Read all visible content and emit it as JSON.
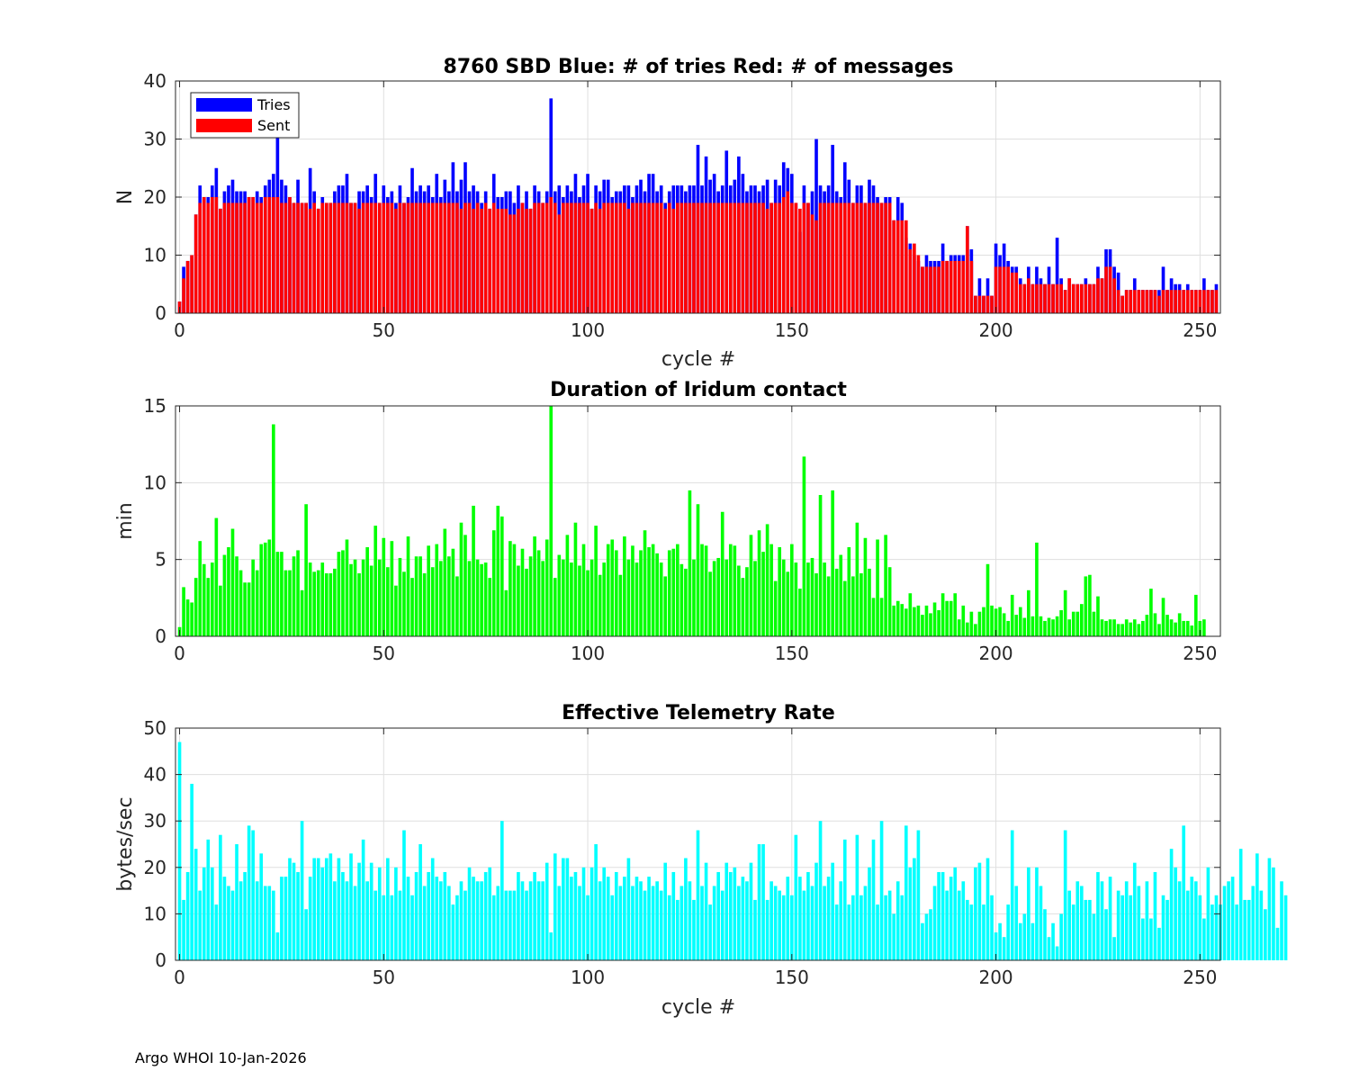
{
  "chart_data": [
    {
      "type": "bar",
      "title": "8760 SBD  Blue: # of tries   Red: # of messages",
      "xlabel": "cycle #",
      "ylabel": "N",
      "xlim": [
        -1,
        255
      ],
      "ylim": [
        0,
        40
      ],
      "xticks": [
        0,
        50,
        100,
        150,
        200,
        250
      ],
      "yticks": [
        0,
        10,
        20,
        30,
        40
      ],
      "grid": true,
      "legend": {
        "position": "top-left",
        "entries": [
          "Tries",
          "Sent"
        ]
      },
      "series": [
        {
          "name": "Tries",
          "color": "#0000ff",
          "values": [
            2,
            8,
            9,
            10,
            17,
            22,
            20,
            20,
            22,
            25,
            18,
            21,
            22,
            23,
            21,
            21,
            21,
            20,
            20,
            21,
            20,
            22,
            23,
            24,
            32,
            23,
            22,
            20,
            19,
            23,
            19,
            19,
            25,
            21,
            18,
            20,
            19,
            19,
            21,
            22,
            22,
            24,
            19,
            19,
            21,
            21,
            22,
            20,
            24,
            19,
            22,
            20,
            21,
            19,
            22,
            19,
            20,
            25,
            21,
            22,
            21,
            22,
            20,
            24,
            20,
            23,
            21,
            26,
            21,
            23,
            26,
            21,
            22,
            21,
            19,
            21,
            18,
            24,
            20,
            20,
            21,
            21,
            19,
            22,
            19,
            21,
            18,
            22,
            21,
            19,
            21,
            37,
            21,
            22,
            20,
            22,
            21,
            24,
            20,
            22,
            24,
            18,
            22,
            21,
            23,
            23,
            20,
            21,
            21,
            22,
            22,
            20,
            22,
            23,
            21,
            24,
            24,
            21,
            22,
            19,
            21,
            22,
            22,
            22,
            21,
            22,
            22,
            29,
            22,
            27,
            23,
            24,
            21,
            22,
            28,
            22,
            23,
            27,
            24,
            21,
            22,
            22,
            21,
            22,
            23,
            19,
            23,
            22,
            26,
            25,
            24,
            19,
            14,
            22,
            19,
            21,
            30,
            22,
            21,
            22,
            29,
            21,
            20,
            26,
            23,
            19,
            22,
            22,
            19,
            23,
            22,
            20,
            19,
            20,
            20,
            16,
            20,
            19,
            13,
            12,
            10,
            9,
            8,
            10,
            9,
            9,
            9,
            12,
            9,
            10,
            10,
            10,
            10,
            15,
            11,
            3,
            6,
            3,
            6,
            3,
            12,
            10,
            12,
            9,
            8,
            8,
            6,
            5,
            8,
            5,
            8,
            6,
            5,
            8,
            5,
            13,
            6,
            4,
            6,
            5,
            5,
            5,
            6,
            5,
            5,
            8,
            6,
            11,
            11,
            8,
            7,
            3,
            4,
            4,
            6,
            4,
            4,
            4,
            4,
            4,
            4,
            8,
            4,
            6,
            5,
            5,
            4,
            5,
            4,
            4,
            4,
            6,
            4,
            4,
            5
          ]
        },
        {
          "name": "Sent",
          "color": "#ff0000",
          "values": [
            2,
            6,
            9,
            10,
            17,
            19,
            20,
            19,
            20,
            20,
            18,
            19,
            19,
            19,
            19,
            19,
            19,
            20,
            20,
            19,
            19,
            20,
            20,
            20,
            20,
            19,
            19,
            20,
            19,
            19,
            19,
            19,
            18,
            19,
            18,
            19,
            19,
            19,
            19,
            19,
            19,
            19,
            19,
            19,
            18,
            19,
            19,
            19,
            19,
            19,
            19,
            19,
            19,
            18,
            19,
            19,
            19,
            19,
            19,
            19,
            19,
            19,
            19,
            19,
            19,
            19,
            19,
            19,
            19,
            18,
            19,
            19,
            18,
            19,
            18,
            19,
            18,
            19,
            18,
            18,
            18,
            17,
            17,
            18,
            19,
            18,
            18,
            19,
            19,
            19,
            19,
            20,
            19,
            17,
            19,
            19,
            19,
            19,
            19,
            19,
            19,
            18,
            19,
            18,
            19,
            19,
            19,
            19,
            19,
            19,
            18,
            19,
            19,
            19,
            19,
            19,
            19,
            19,
            19,
            18,
            19,
            18,
            19,
            19,
            19,
            19,
            19,
            19,
            19,
            19,
            19,
            19,
            19,
            19,
            19,
            19,
            19,
            19,
            19,
            19,
            19,
            19,
            19,
            19,
            18,
            19,
            19,
            19,
            20,
            21,
            19,
            19,
            18,
            19,
            19,
            17,
            16,
            19,
            19,
            19,
            19,
            19,
            19,
            19,
            19,
            19,
            19,
            19,
            19,
            19,
            19,
            19,
            19,
            19,
            19,
            16,
            16,
            16,
            16,
            11,
            12,
            10,
            8,
            8,
            8,
            8,
            8,
            9,
            9,
            9,
            9,
            9,
            9,
            15,
            9,
            3,
            3,
            3,
            3,
            3,
            8,
            8,
            8,
            8,
            7,
            7,
            5,
            5,
            6,
            5,
            5,
            5,
            5,
            5,
            5,
            5,
            5,
            4,
            6,
            5,
            5,
            5,
            5,
            5,
            5,
            6,
            6,
            8,
            8,
            6,
            4,
            3,
            4,
            4,
            4,
            4,
            4,
            4,
            4,
            4,
            3,
            4,
            4,
            4,
            4,
            4,
            4,
            4,
            4,
            4,
            4,
            4,
            4,
            4,
            4
          ]
        }
      ]
    },
    {
      "type": "bar",
      "title": "Duration of Iridum contact",
      "xlabel": "",
      "ylabel": "min",
      "xlim": [
        -1,
        255
      ],
      "ylim": [
        0,
        15
      ],
      "xticks": [
        0,
        50,
        100,
        150,
        200,
        250
      ],
      "yticks": [
        0,
        5,
        10,
        15
      ],
      "grid": true,
      "series": [
        {
          "name": "Duration",
          "color": "#00ff00",
          "values": [
            0.6,
            3.2,
            2.4,
            2.2,
            3.8,
            6.2,
            4.7,
            3.8,
            4.8,
            7.7,
            3.3,
            5.3,
            5.8,
            7.0,
            5.2,
            4.3,
            3.5,
            3.5,
            5.0,
            4.3,
            6.0,
            6.1,
            6.3,
            13.8,
            5.5,
            5.5,
            4.3,
            4.3,
            5.2,
            5.6,
            3.0,
            8.6,
            4.8,
            4.2,
            4.3,
            4.8,
            4.1,
            4.1,
            4.4,
            5.5,
            5.6,
            6.3,
            4.7,
            5.0,
            4.1,
            5.0,
            5.8,
            4.6,
            7.2,
            5.0,
            6.4,
            4.5,
            6.2,
            3.3,
            5.1,
            4.2,
            6.5,
            3.8,
            5.2,
            5.2,
            4.1,
            5.9,
            4.5,
            6.0,
            4.9,
            7.0,
            5.2,
            5.7,
            3.9,
            7.4,
            6.6,
            4.9,
            8.5,
            5.0,
            4.7,
            4.8,
            3.8,
            6.9,
            8.5,
            7.8,
            3.0,
            6.2,
            6.0,
            4.6,
            5.7,
            4.4,
            5.2,
            6.5,
            5.6,
            4.9,
            6.3,
            15.0,
            3.8,
            5.3,
            5.0,
            6.6,
            4.8,
            7.4,
            4.6,
            6.0,
            4.3,
            5.0,
            7.2,
            4.0,
            4.8,
            6.0,
            6.3,
            5.6,
            4.0,
            6.5,
            5.0,
            5.9,
            4.8,
            5.6,
            6.9,
            5.8,
            6.0,
            5.4,
            4.8,
            3.9,
            5.6,
            5.7,
            6.0,
            4.7,
            4.4,
            9.5,
            5.0,
            8.6,
            6.0,
            5.9,
            4.2,
            4.9,
            5.1,
            8.1,
            5.0,
            6.0,
            5.9,
            4.6,
            3.8,
            4.5,
            6.6,
            4.9,
            6.9,
            5.5,
            7.3,
            6.0,
            3.6,
            5.8,
            5.0,
            4.2,
            6.0,
            4.8,
            3.1,
            11.7,
            4.8,
            5.1,
            4.1,
            9.2,
            4.8,
            3.9,
            9.5,
            4.4,
            5.3,
            3.6,
            5.8,
            3.9,
            7.4,
            4.1,
            6.4,
            4.4,
            2.5,
            6.3,
            2.5,
            6.6,
            4.5,
            2.0,
            2.3,
            2.1,
            1.8,
            2.8,
            1.9,
            2.0,
            1.4,
            2.0,
            1.5,
            2.2,
            1.7,
            2.8,
            2.3,
            2.3,
            2.8,
            1.1,
            2.0,
            0.9,
            1.6,
            0.8,
            1.6,
            1.9,
            4.7,
            2.0,
            1.8,
            1.9,
            1.5,
            1.0,
            2.7,
            1.4,
            1.9,
            1.2,
            3.0,
            1.3,
            6.1,
            1.3,
            1.0,
            1.2,
            1.1,
            1.3,
            1.7,
            3.0,
            1.1,
            1.6,
            1.6,
            2.1,
            3.9,
            4.0,
            1.6,
            2.6,
            1.1,
            1.0,
            1.1,
            1.1,
            0.8,
            0.8,
            1.1,
            0.9,
            1.1,
            0.8,
            1.0,
            1.4,
            3.1,
            1.5,
            0.8,
            2.5,
            1.4,
            1.1,
            0.9,
            1.5,
            1.0,
            1.0,
            0.7,
            2.7,
            1.0,
            1.1
          ]
        }
      ]
    },
    {
      "type": "bar",
      "title": "Effective Telemetry Rate",
      "xlabel": "cycle #",
      "ylabel": "bytes/sec",
      "xlim": [
        -1,
        255
      ],
      "ylim": [
        0,
        50
      ],
      "xticks": [
        0,
        50,
        100,
        150,
        200,
        250
      ],
      "yticks": [
        0,
        10,
        20,
        30,
        40,
        50
      ],
      "grid": true,
      "series": [
        {
          "name": "Rate",
          "color": "#00ffff",
          "values": [
            47,
            13,
            19,
            38,
            24,
            15,
            20,
            26,
            20,
            12,
            27,
            18,
            16,
            15,
            25,
            17,
            19,
            29,
            28,
            17,
            23,
            16,
            16,
            15,
            6,
            18,
            18,
            22,
            21,
            19,
            30,
            11,
            18,
            22,
            22,
            20,
            22,
            23,
            17,
            22,
            19,
            17,
            23,
            16,
            21,
            26,
            17,
            21,
            15,
            20,
            14,
            22,
            14,
            20,
            15,
            28,
            18,
            14,
            19,
            25,
            16,
            19,
            22,
            18,
            17,
            19,
            16,
            12,
            14,
            17,
            15,
            20,
            18,
            17,
            17,
            19,
            20,
            14,
            16,
            30,
            15,
            15,
            15,
            19,
            17,
            15,
            17,
            19,
            17,
            17,
            21,
            6,
            23,
            16,
            22,
            22,
            18,
            19,
            16,
            20,
            14,
            20,
            25,
            17,
            20,
            18,
            14,
            19,
            16,
            18,
            22,
            16,
            18,
            17,
            15,
            18,
            16,
            17,
            15,
            21,
            14,
            19,
            13,
            16,
            22,
            17,
            13,
            28,
            16,
            21,
            12,
            16,
            19,
            15,
            21,
            19,
            20,
            16,
            18,
            17,
            21,
            13,
            25,
            25,
            13,
            17,
            16,
            15,
            14,
            18,
            14,
            27,
            18,
            15,
            19,
            16,
            21,
            30,
            16,
            18,
            21,
            12,
            17,
            26,
            12,
            14,
            27,
            14,
            16,
            20,
            26,
            12,
            30,
            14,
            15,
            10,
            17,
            14,
            29,
            20,
            22,
            28,
            8,
            10,
            11,
            16,
            19,
            19,
            15,
            18,
            20,
            15,
            17,
            13,
            12,
            20,
            21,
            12,
            22,
            14,
            6,
            8,
            5,
            12,
            28,
            16,
            8,
            10,
            20,
            8,
            20,
            16,
            11,
            5,
            8,
            3,
            10,
            28,
            15,
            12,
            17,
            16,
            13,
            13,
            10,
            19,
            17,
            11,
            18,
            5,
            15,
            14,
            17,
            14,
            21,
            16,
            9,
            17,
            9,
            19,
            7,
            14,
            13,
            24,
            20,
            17,
            29,
            15,
            18,
            17,
            14,
            9,
            20,
            12,
            14,
            12,
            16,
            17,
            18,
            12,
            24,
            13,
            13,
            16,
            23,
            15,
            11,
            22,
            20,
            7,
            17,
            14
          ]
        }
      ]
    }
  ],
  "footer": "Argo WHOI 10-Jan-2026"
}
